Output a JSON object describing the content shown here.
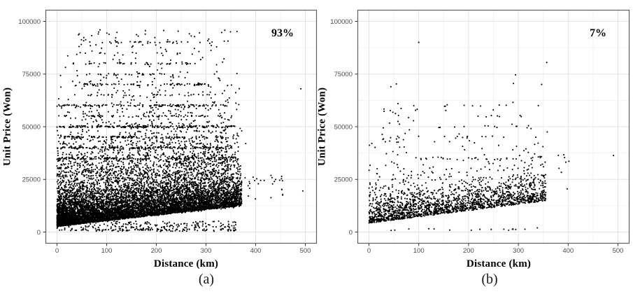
{
  "style": {
    "background": "#ffffff",
    "panel_bg": "#ffffff",
    "panel_border": "#5f5f5f",
    "grid_major": "#e4e4e4",
    "grid_minor": "#f2f2f2",
    "tick_mark_color": "#333333",
    "tick_label_color": "#4d4d4d",
    "point_color": "#000000",
    "text_color": "#000000"
  },
  "chart_data": [
    {
      "id": "a",
      "type": "scatter",
      "annotation": "93%",
      "caption": "(a)",
      "xlabel": "Distance (km)",
      "ylabel": "Unit Price (Won)",
      "xlim": [
        0,
        500
      ],
      "ylim": [
        0,
        100000
      ],
      "xticks": [
        0,
        100,
        200,
        300,
        400,
        500
      ],
      "yticks": [
        0,
        25000,
        50000,
        75000,
        100000
      ],
      "ytick_labels": [
        "0",
        "25000",
        "50000",
        "75000",
        "100000"
      ],
      "minor_xticks": [
        50,
        150,
        250,
        350,
        450
      ],
      "minor_yticks": [
        12500,
        37500,
        62500,
        87500
      ],
      "grid": true,
      "legend": "none",
      "seed": 1337,
      "components": [
        {
          "kind": "wedge",
          "n": 6800,
          "x0": 0,
          "x1": 372,
          "xpow": 1.25,
          "base": 2600,
          "slope": 27,
          "scale": 6800,
          "ymax": 96500
        },
        {
          "kind": "wedge",
          "n": 2500,
          "x0": 0,
          "x1": 368,
          "xpow": 1.1,
          "base": 3000,
          "slope": 24,
          "scale": 16000,
          "ymax": 96500
        },
        {
          "kind": "wedge",
          "n": 480,
          "x0": 5,
          "x1": 350,
          "xpow": 1.0,
          "base": 26000,
          "slope": 10,
          "scale": 26000,
          "ymax": 96500
        },
        {
          "kind": "box",
          "n": 240,
          "x0": 0,
          "x1": 360,
          "y0": 500,
          "y1": 5200
        },
        {
          "kind": "box",
          "n": 60,
          "x0": 5,
          "x1": 360,
          "y0": 300,
          "y1": 1400
        },
        {
          "kind": "box",
          "n": 22,
          "x0": 375,
          "x1": 455,
          "y0": 15000,
          "y1": 28000
        },
        {
          "kind": "band",
          "y": 35000,
          "n": 150,
          "x0": 0,
          "x1": 360,
          "jitter": 500
        },
        {
          "kind": "band",
          "y": 40000,
          "n": 160,
          "x0": 0,
          "x1": 357,
          "jitter": 450
        },
        {
          "kind": "band",
          "y": 45000,
          "n": 105,
          "x0": 5,
          "x1": 345,
          "jitter": 450
        },
        {
          "kind": "band",
          "y": 50000,
          "n": 170,
          "x0": 0,
          "x1": 360,
          "jitter": 450
        },
        {
          "kind": "band",
          "y": 55000,
          "n": 55,
          "x0": 15,
          "x1": 335,
          "jitter": 400
        },
        {
          "kind": "band",
          "y": 60000,
          "n": 110,
          "x0": 0,
          "x1": 348,
          "jitter": 450
        },
        {
          "kind": "band",
          "y": 65000,
          "n": 28,
          "x0": 55,
          "x1": 305,
          "jitter": 400
        },
        {
          "kind": "band",
          "y": 70000,
          "n": 62,
          "x0": 50,
          "x1": 305,
          "jitter": 450
        },
        {
          "kind": "band",
          "y": 75000,
          "n": 22,
          "x0": 50,
          "x1": 240,
          "jitter": 400
        },
        {
          "kind": "band",
          "y": 80000,
          "n": 40,
          "x0": 25,
          "x1": 285,
          "jitter": 400
        },
        {
          "kind": "band",
          "y": 85000,
          "n": 10,
          "x0": 45,
          "x1": 250,
          "jitter": 400
        },
        {
          "kind": "band",
          "y": 90000,
          "n": 24,
          "x0": 55,
          "x1": 265,
          "jitter": 400
        },
        {
          "kind": "pts",
          "pts": [
            [
              491,
              68000
            ],
            [
              178,
              95600
            ],
            [
              244,
              95300
            ],
            [
              197,
              92300
            ],
            [
              310,
              86200
            ],
            [
              366,
              60500
            ],
            [
              372,
              48000
            ],
            [
              380,
              42000
            ],
            [
              369,
              30000
            ],
            [
              433,
              25800
            ],
            [
              452,
              25300
            ],
            [
              495,
              19500
            ],
            [
              300,
              2500
            ],
            [
              330,
              4200
            ],
            [
              352,
              3000
            ],
            [
              385,
              22000
            ],
            [
              395,
              26000
            ],
            [
              410,
              24500
            ]
          ]
        }
      ]
    },
    {
      "id": "b",
      "type": "scatter",
      "annotation": "7%",
      "caption": "(b)",
      "xlabel": "Distance (km)",
      "ylabel": "Unit Price (Won)",
      "xlim": [
        0,
        500
      ],
      "ylim": [
        0,
        100000
      ],
      "xticks": [
        0,
        100,
        200,
        300,
        400,
        500
      ],
      "yticks": [
        0,
        25000,
        50000,
        75000,
        100000
      ],
      "ytick_labels": [
        "0",
        "25000",
        "50000",
        "75000",
        "100000"
      ],
      "minor_xticks": [
        50,
        150,
        250,
        350,
        450
      ],
      "minor_yticks": [
        12500,
        37500,
        62500,
        87500
      ],
      "grid": true,
      "legend": "none",
      "seed": 2024,
      "components": [
        {
          "kind": "wedge",
          "n": 1750,
          "x0": 0,
          "x1": 355,
          "xpow": 1.12,
          "base": 4200,
          "slope": 30,
          "scale": 5200,
          "ymax": 88000
        },
        {
          "kind": "wedge",
          "n": 300,
          "x0": 0,
          "x1": 350,
          "xpow": 1.0,
          "base": 4500,
          "slope": 28,
          "scale": 12500,
          "ymax": 76000
        },
        {
          "kind": "box",
          "n": 26,
          "x0": 25,
          "x1": 100,
          "y0": 42000,
          "y1": 61000
        },
        {
          "kind": "band",
          "y": 50000,
          "n": 12,
          "x0": 140,
          "x1": 345,
          "jitter": 600
        },
        {
          "kind": "band",
          "y": 45000,
          "n": 9,
          "x0": 150,
          "x1": 330,
          "jitter": 600
        },
        {
          "kind": "band",
          "y": 55000,
          "n": 7,
          "x0": 170,
          "x1": 320,
          "jitter": 500
        },
        {
          "kind": "band",
          "y": 60000,
          "n": 9,
          "x0": 55,
          "x1": 300,
          "jitter": 500
        },
        {
          "kind": "band",
          "y": 35000,
          "n": 20,
          "x0": 80,
          "x1": 350,
          "jitter": 700
        },
        {
          "kind": "box",
          "n": 16,
          "x0": 40,
          "x1": 330,
          "y0": 700,
          "y1": 1700
        },
        {
          "kind": "box",
          "n": 7,
          "x0": 380,
          "x1": 402,
          "y0": 24000,
          "y1": 37500
        },
        {
          "kind": "pts",
          "pts": [
            [
              100,
              90000
            ],
            [
              55,
              70300
            ],
            [
              290,
              70500
            ],
            [
              357,
              80500
            ],
            [
              491,
              36300
            ],
            [
              340,
              60000
            ],
            [
              358,
              47500
            ],
            [
              338,
              2000
            ],
            [
              398,
              20500
            ]
          ]
        }
      ]
    }
  ]
}
